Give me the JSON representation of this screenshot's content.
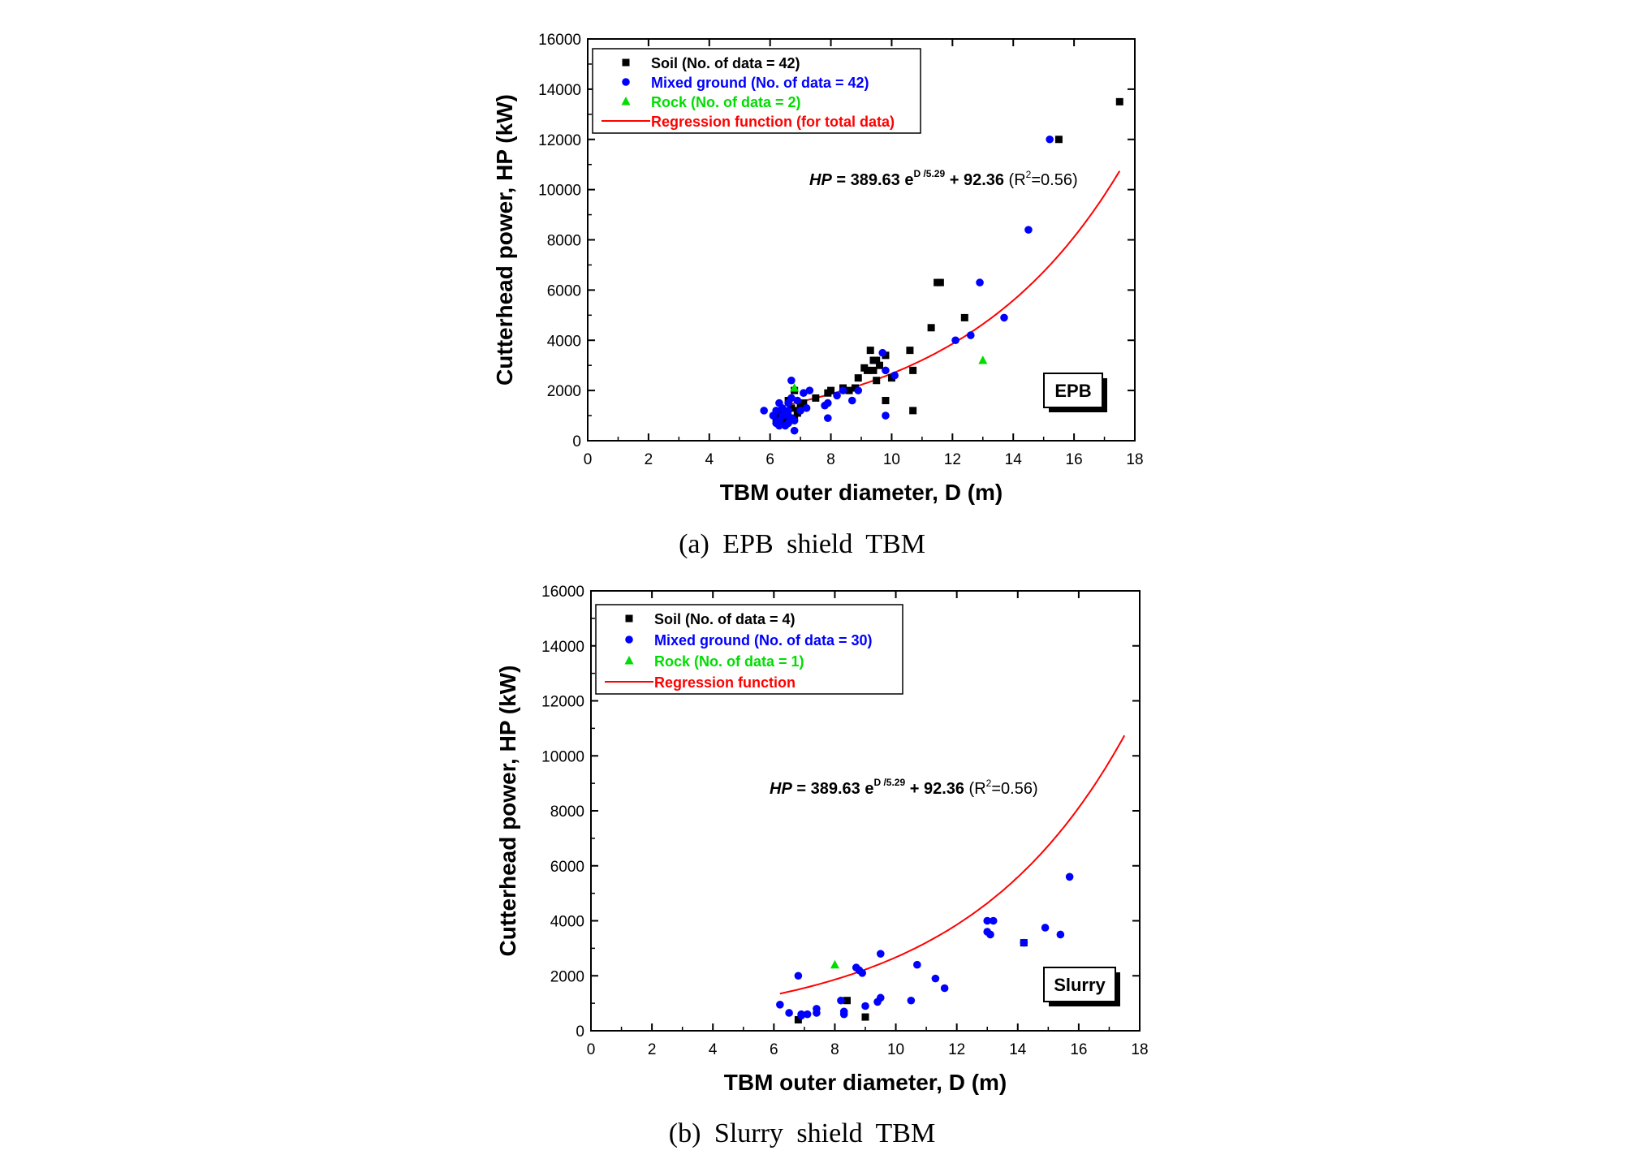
{
  "colors": {
    "soil": "#000000",
    "mixed": "#0000ff",
    "rock": "#00dd00",
    "regression": "#ff0000"
  },
  "captions": {
    "a": "(a)  EPB  shield  TBM",
    "b": "(b)  Slurry  shield  TBM"
  },
  "chart_data": [
    {
      "type": "scatter",
      "badge": "EPB",
      "xlabel": "TBM outer diameter, D (m)",
      "ylabel": "Cutterhead power, HP (kW)",
      "xlim": [
        0,
        18
      ],
      "ylim": [
        0,
        16000
      ],
      "xticks": [
        0,
        2,
        4,
        6,
        8,
        10,
        12,
        14,
        16,
        18
      ],
      "yticks": [
        0,
        2000,
        4000,
        6000,
        8000,
        10000,
        12000,
        14000,
        16000
      ],
      "grid": false,
      "legend_position": "top-left",
      "equation": {
        "lhs": "HP",
        "mid": " = 389.63 e",
        "exp": "D /5.29",
        "rhs": " + 92.36",
        "r2": " (R",
        "r2sup": "2",
        "r2end": "=0.56)"
      },
      "regression": {
        "a": 389.63,
        "b": 5.29,
        "c": 92.36,
        "x_range": [
          6.5,
          17.5
        ]
      },
      "series": [
        {
          "name": "Soil (No. of data = 42)",
          "marker": "square",
          "color_key": "soil",
          "points": [
            [
              6.3,
              1000
            ],
            [
              6.4,
              800
            ],
            [
              6.4,
              1200
            ],
            [
              6.5,
              700
            ],
            [
              6.5,
              1000
            ],
            [
              6.6,
              900
            ],
            [
              6.7,
              1300
            ],
            [
              6.8,
              900
            ],
            [
              6.8,
              2000
            ],
            [
              6.9,
              1200
            ],
            [
              7.0,
              1400
            ],
            [
              7.5,
              1700
            ],
            [
              7.9,
              1900
            ],
            [
              8.0,
              2000
            ],
            [
              8.6,
              2000
            ],
            [
              8.9,
              2500
            ],
            [
              9.2,
              2800
            ],
            [
              9.4,
              2800
            ],
            [
              9.4,
              3200
            ],
            [
              9.3,
              3600
            ],
            [
              9.5,
              3200
            ],
            [
              9.5,
              2400
            ],
            [
              9.8,
              1600
            ],
            [
              9.8,
              3400
            ],
            [
              10.0,
              2500
            ],
            [
              10.6,
              3600
            ],
            [
              10.7,
              2800
            ],
            [
              10.7,
              1200
            ],
            [
              11.3,
              4500
            ],
            [
              11.5,
              6300
            ],
            [
              11.6,
              6300
            ],
            [
              12.4,
              4900
            ],
            [
              15.5,
              12000
            ],
            [
              17.5,
              13500
            ],
            [
              6.2,
              900
            ],
            [
              6.6,
              1600
            ],
            [
              7.1,
              1500
            ],
            [
              8.4,
              2100
            ],
            [
              8.8,
              2100
            ],
            [
              9.1,
              2900
            ],
            [
              9.6,
              3000
            ],
            [
              6.9,
              1100
            ]
          ]
        },
        {
          "name": "Mixed ground (No. of data = 42)",
          "marker": "circle",
          "color_key": "mixed",
          "points": [
            [
              5.8,
              1200
            ],
            [
              6.1,
              1000
            ],
            [
              6.2,
              700
            ],
            [
              6.2,
              1200
            ],
            [
              6.3,
              1500
            ],
            [
              6.3,
              800
            ],
            [
              6.4,
              1000
            ],
            [
              6.5,
              1100
            ],
            [
              6.5,
              600
            ],
            [
              6.6,
              700
            ],
            [
              6.6,
              1200
            ],
            [
              6.6,
              1500
            ],
            [
              6.7,
              2400
            ],
            [
              6.7,
              1700
            ],
            [
              6.8,
              400
            ],
            [
              6.8,
              800
            ],
            [
              6.9,
              1600
            ],
            [
              7.0,
              1200
            ],
            [
              7.1,
              1900
            ],
            [
              7.3,
              2000
            ],
            [
              7.8,
              1400
            ],
            [
              7.9,
              1500
            ],
            [
              7.9,
              900
            ],
            [
              8.2,
              1800
            ],
            [
              8.4,
              2000
            ],
            [
              8.7,
              1600
            ],
            [
              8.9,
              2000
            ],
            [
              9.7,
              3500
            ],
            [
              9.8,
              2800
            ],
            [
              9.8,
              1000
            ],
            [
              10.1,
              2600
            ],
            [
              12.1,
              4000
            ],
            [
              12.6,
              4200
            ],
            [
              12.9,
              6300
            ],
            [
              13.7,
              4900
            ],
            [
              14.5,
              8400
            ],
            [
              15.2,
              12000
            ],
            [
              6.4,
              1300
            ],
            [
              6.7,
              900
            ],
            [
              7.2,
              1300
            ],
            [
              6.3,
              600
            ],
            [
              6.6,
              1000
            ]
          ]
        },
        {
          "name": "Rock (No. of data = 2)",
          "marker": "triangle",
          "color_key": "rock",
          "points": [
            [
              6.8,
              2100
            ],
            [
              13.0,
              3200
            ]
          ]
        },
        {
          "name": "Regression function (for total data)",
          "marker": "line",
          "color_key": "regression",
          "points": []
        }
      ]
    },
    {
      "type": "scatter",
      "badge": "Slurry",
      "xlabel": "TBM outer diameter, D (m)",
      "ylabel": "Cutterhead power, HP (kW)",
      "xlim": [
        0,
        18
      ],
      "ylim": [
        0,
        16000
      ],
      "xticks": [
        0,
        2,
        4,
        6,
        8,
        10,
        12,
        14,
        16,
        18
      ],
      "yticks": [
        0,
        2000,
        4000,
        6000,
        8000,
        10000,
        12000,
        14000,
        16000
      ],
      "grid": false,
      "legend_position": "top-left",
      "equation": {
        "lhs": "HP",
        "mid": " = 389.63 e",
        "exp": "D /5.29",
        "rhs": " + 92.36",
        "r2": " (R",
        "r2sup": "2",
        "r2end": "=0.56)"
      },
      "regression": {
        "a": 389.63,
        "b": 5.29,
        "c": 92.36,
        "x_range": [
          6.2,
          17.5
        ]
      },
      "series": [
        {
          "name": "Soil (No. of data = 4)",
          "marker": "square",
          "color_key": "soil",
          "points": [
            [
              6.8,
              400
            ],
            [
              8.4,
              1100
            ],
            [
              9.0,
              500
            ],
            [
              14.2,
              3200
            ]
          ]
        },
        {
          "name": "Mixed ground (No. of data = 30)",
          "marker": "circle",
          "color_key": "mixed",
          "points": [
            [
              6.2,
              950
            ],
            [
              6.5,
              650
            ],
            [
              6.8,
              2000
            ],
            [
              6.9,
              600
            ],
            [
              7.1,
              600
            ],
            [
              7.4,
              650
            ],
            [
              7.4,
              800
            ],
            [
              8.2,
              1100
            ],
            [
              8.3,
              700
            ],
            [
              8.3,
              600
            ],
            [
              8.8,
              2200
            ],
            [
              8.9,
              2100
            ],
            [
              9.0,
              900
            ],
            [
              9.4,
              1050
            ],
            [
              9.5,
              1200
            ],
            [
              9.5,
              2800
            ],
            [
              10.5,
              1100
            ],
            [
              10.7,
              2400
            ],
            [
              11.3,
              1900
            ],
            [
              11.6,
              1550
            ],
            [
              13.0,
              4000
            ],
            [
              13.0,
              3600
            ],
            [
              13.1,
              3500
            ],
            [
              13.2,
              4000
            ],
            [
              14.2,
              3200
            ],
            [
              14.9,
              3750
            ],
            [
              15.4,
              3500
            ],
            [
              15.7,
              5600
            ],
            [
              8.7,
              2300
            ],
            [
              6.9,
              550
            ]
          ]
        },
        {
          "name": "Rock (No. of data = 1)",
          "marker": "triangle",
          "color_key": "rock",
          "points": [
            [
              8.0,
              2400
            ]
          ]
        },
        {
          "name": "Regression function",
          "marker": "line",
          "color_key": "regression",
          "points": []
        }
      ]
    }
  ]
}
